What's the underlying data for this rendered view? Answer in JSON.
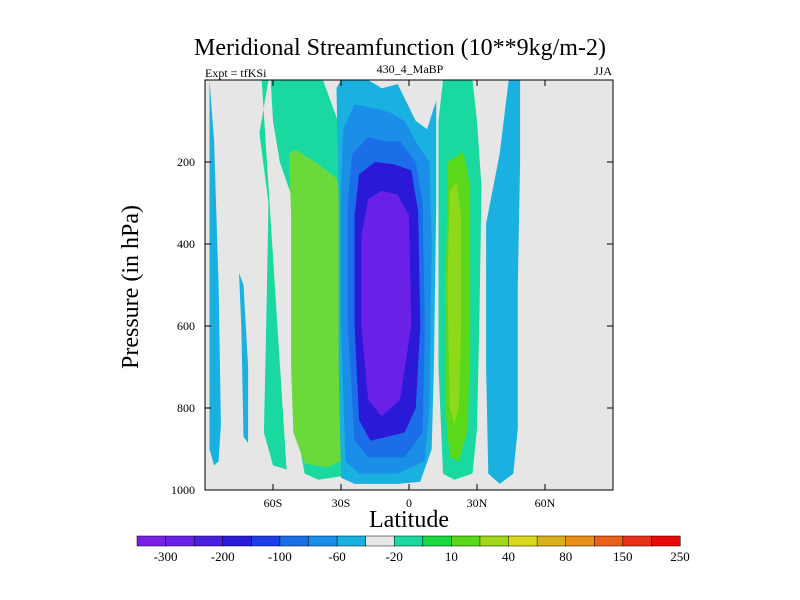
{
  "chart_data": {
    "type": "contour",
    "title": "Meridional Streamfunction (10**9kg/m-2)",
    "left_label": "Expt = tfKSi",
    "center_label": "430_4_MaBP",
    "right_label": "JJA",
    "xlabel": "Latitude",
    "ylabel": "Pressure (in hPa)",
    "xlim": [
      -90,
      90
    ],
    "ylim": [
      1000,
      0
    ],
    "x_ticks": [
      {
        "value": -60,
        "label": "60S"
      },
      {
        "value": -30,
        "label": "30S"
      },
      {
        "value": 0,
        "label": "0"
      },
      {
        "value": 30,
        "label": "30N"
      },
      {
        "value": 60,
        "label": "60N"
      }
    ],
    "y_ticks": [
      {
        "value": 200,
        "label": "200"
      },
      {
        "value": 400,
        "label": "400"
      },
      {
        "value": 600,
        "label": "600"
      },
      {
        "value": 800,
        "label": "800"
      },
      {
        "value": 1000,
        "label": "1000"
      }
    ],
    "colorbar": {
      "colors": [
        "#7a1fe6",
        "#6a20e6",
        "#4a1fe0",
        "#2a1ad8",
        "#1b3ee8",
        "#1b6ee8",
        "#1b8fe8",
        "#1ab0e0",
        "#e6e6e6",
        "#1ad9a0",
        "#1ad940",
        "#5ad91a",
        "#a0d91a",
        "#d9d91a",
        "#d9b01a",
        "#e8901a",
        "#e8601a",
        "#e8301a",
        "#e80a0a"
      ],
      "labels": [
        "-300",
        "-200",
        "-100",
        "-60",
        "-20",
        "10",
        "40",
        "80",
        "150",
        "250"
      ]
    },
    "fields": [
      {
        "level": -20,
        "color": "#1ab0e0",
        "pts": [
          [
            -88,
            0
          ],
          [
            -86,
            150
          ],
          [
            -84,
            500
          ],
          [
            -83,
            840
          ],
          [
            -84,
            930
          ],
          [
            -86,
            940
          ],
          [
            -88,
            900
          ]
        ]
      },
      {
        "level": -20,
        "color": "#1ab0e0",
        "pts": [
          [
            -75,
            470
          ],
          [
            -74,
            600
          ],
          [
            -73,
            870
          ],
          [
            -71,
            885
          ],
          [
            -71,
            700
          ],
          [
            -73,
            500
          ]
        ]
      },
      {
        "level": 10,
        "color": "#1ad9a0",
        "pts": [
          [
            -65,
            0
          ],
          [
            -61,
            0
          ],
          [
            -60,
            100
          ],
          [
            -57,
            200
          ],
          [
            -52,
            280
          ],
          [
            -50,
            350
          ],
          [
            -49,
            600
          ],
          [
            -49,
            800
          ],
          [
            -48,
            900
          ],
          [
            -46,
            960
          ],
          [
            -40,
            975
          ],
          [
            -28,
            965
          ],
          [
            -24,
            920
          ],
          [
            -22,
            700
          ],
          [
            -22,
            450
          ],
          [
            -24,
            250
          ],
          [
            -28,
            150
          ],
          [
            -34,
            60
          ],
          [
            -38,
            0
          ],
          [
            -62,
            0
          ],
          [
            -66,
            130
          ],
          [
            -62,
            300
          ],
          [
            -63,
            600
          ],
          [
            -64,
            860
          ],
          [
            -60,
            940
          ],
          [
            -54,
            950
          ]
        ]
      },
      {
        "level": 40,
        "color": "#6ad93a",
        "pts": [
          [
            -53,
            180
          ],
          [
            -52,
            330
          ],
          [
            -52,
            700
          ],
          [
            -51,
            860
          ],
          [
            -46,
            935
          ],
          [
            -36,
            945
          ],
          [
            -27,
            920
          ],
          [
            -27,
            700
          ],
          [
            -28,
            330
          ],
          [
            -32,
            240
          ],
          [
            -40,
            205
          ],
          [
            -50,
            170
          ]
        ]
      },
      {
        "level": -20,
        "color": "#1ab0e0",
        "pts": [
          [
            -32,
            20
          ],
          [
            -30,
            0
          ],
          [
            -18,
            0
          ],
          [
            -12,
            20
          ],
          [
            -5,
            10
          ],
          [
            3,
            100
          ],
          [
            8,
            120
          ],
          [
            12,
            50
          ],
          [
            12,
            300
          ],
          [
            11,
            700
          ],
          [
            10,
            900
          ],
          [
            5,
            980
          ],
          [
            -5,
            985
          ],
          [
            -24,
            985
          ],
          [
            -30,
            970
          ],
          [
            -31,
            700
          ],
          [
            -31,
            300
          ]
        ]
      },
      {
        "level": -60,
        "color": "#1b8fe8",
        "pts": [
          [
            -29,
            120
          ],
          [
            -24,
            60
          ],
          [
            -14,
            70
          ],
          [
            -8,
            80
          ],
          [
            -2,
            100
          ],
          [
            4,
            160
          ],
          [
            9,
            200
          ],
          [
            10,
            400
          ],
          [
            9,
            800
          ],
          [
            7,
            930
          ],
          [
            -5,
            960
          ],
          [
            -22,
            960
          ],
          [
            -28,
            930
          ],
          [
            -30,
            600
          ],
          [
            -30,
            250
          ]
        ]
      },
      {
        "level": -100,
        "color": "#1b6ee8",
        "pts": [
          [
            -25,
            180
          ],
          [
            -18,
            140
          ],
          [
            -10,
            150
          ],
          [
            -4,
            150
          ],
          [
            3,
            200
          ],
          [
            6,
            300
          ],
          [
            7,
            600
          ],
          [
            6,
            860
          ],
          [
            -2,
            920
          ],
          [
            -18,
            920
          ],
          [
            -24,
            880
          ],
          [
            -27,
            600
          ],
          [
            -27,
            300
          ]
        ]
      },
      {
        "level": -200,
        "color": "#2a1ad8",
        "pts": [
          [
            -22,
            230
          ],
          [
            -15,
            200
          ],
          [
            -7,
            205
          ],
          [
            1,
            220
          ],
          [
            4,
            320
          ],
          [
            5,
            600
          ],
          [
            3,
            800
          ],
          [
            -2,
            860
          ],
          [
            -17,
            880
          ],
          [
            -22,
            830
          ],
          [
            -24,
            600
          ],
          [
            -24,
            330
          ]
        ]
      },
      {
        "level": -300,
        "color": "#6a20e6",
        "pts": [
          [
            -18,
            290
          ],
          [
            -12,
            270
          ],
          [
            -5,
            280
          ],
          [
            0,
            330
          ],
          [
            1,
            600
          ],
          [
            -4,
            780
          ],
          [
            -12,
            820
          ],
          [
            -18,
            780
          ],
          [
            -21,
            600
          ],
          [
            -21,
            380
          ]
        ]
      },
      {
        "level": 10,
        "color": "#1ad9a0",
        "pts": [
          [
            15,
            0
          ],
          [
            28,
            0
          ],
          [
            30,
            100
          ],
          [
            32,
            260
          ],
          [
            31,
            600
          ],
          [
            30,
            850
          ],
          [
            28,
            960
          ],
          [
            20,
            975
          ],
          [
            15,
            960
          ],
          [
            13,
            700
          ],
          [
            13,
            300
          ],
          [
            13,
            100
          ]
        ]
      },
      {
        "level": 40,
        "color": "#5ad91a",
        "pts": [
          [
            17,
            200
          ],
          [
            24,
            175
          ],
          [
            27,
            260
          ],
          [
            27,
            600
          ],
          [
            26,
            850
          ],
          [
            22,
            930
          ],
          [
            18,
            920
          ],
          [
            16,
            800
          ],
          [
            16,
            500
          ],
          [
            17,
            300
          ]
        ]
      },
      {
        "level": 80,
        "color": "#8ed91a",
        "pts": [
          [
            18,
            270
          ],
          [
            21,
            250
          ],
          [
            23,
            330
          ],
          [
            23,
            600
          ],
          [
            22,
            800
          ],
          [
            20,
            840
          ],
          [
            18,
            800
          ],
          [
            17,
            500
          ]
        ]
      },
      {
        "level": -20,
        "color": "#1ab0e0",
        "pts": [
          [
            34,
            350
          ],
          [
            40,
            180
          ],
          [
            44,
            0
          ],
          [
            49,
            0
          ],
          [
            49,
            200
          ],
          [
            48,
            500
          ],
          [
            48,
            850
          ],
          [
            46,
            960
          ],
          [
            40,
            985
          ],
          [
            35,
            960
          ],
          [
            34,
            700
          ]
        ]
      }
    ]
  }
}
